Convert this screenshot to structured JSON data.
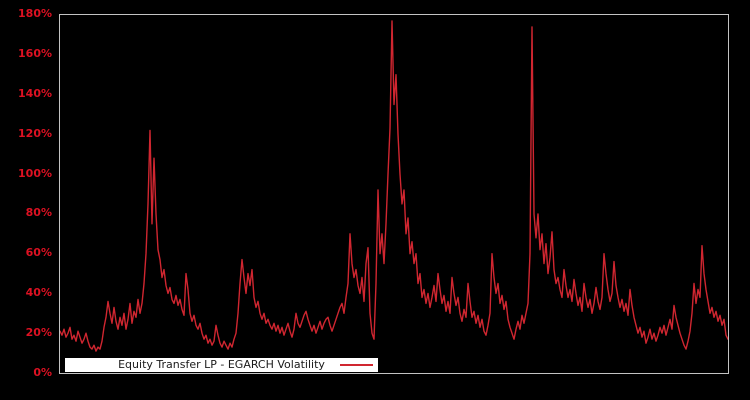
{
  "figure": {
    "background_color": "#000000",
    "plot_border_color": "#c3c3c3",
    "axis_label_color": "#dd1122"
  },
  "legend": {
    "label": "Equity Transfer LP - EGARCH Volatility",
    "background": "#ffffff",
    "text_color": "#1a1a1a"
  },
  "chart_data": {
    "type": "line",
    "title": "",
    "xlabel": "",
    "ylabel": "",
    "x_axis_labels": "none",
    "grid": false,
    "legend_position": "bottom-left-inside",
    "ylim": [
      0,
      180
    ],
    "yticks": [
      {
        "value": 0,
        "label": "0%"
      },
      {
        "value": 20,
        "label": "20%"
      },
      {
        "value": 40,
        "label": "40%"
      },
      {
        "value": 60,
        "label": "60%"
      },
      {
        "value": 80,
        "label": "80%"
      },
      {
        "value": 100,
        "label": "100%"
      },
      {
        "value": 120,
        "label": "120%"
      },
      {
        "value": 140,
        "label": "140%"
      },
      {
        "value": 160,
        "label": "160%"
      },
      {
        "value": 180,
        "label": "180%"
      }
    ],
    "series": [
      {
        "name": "Equity Transfer LP - EGARCH Volatility",
        "color": "#d02630",
        "unit": "percent",
        "values_pct": [
          21,
          19,
          22,
          18,
          20,
          23,
          17,
          19,
          16,
          21,
          18,
          15,
          17,
          20,
          16,
          13,
          12,
          14,
          11,
          13,
          12,
          16,
          23,
          28,
          36,
          30,
          25,
          33,
          26,
          22,
          28,
          24,
          30,
          22,
          27,
          35,
          25,
          31,
          28,
          37,
          30,
          35,
          45,
          60,
          85,
          122,
          75,
          108,
          80,
          62,
          57,
          48,
          52,
          44,
          40,
          43,
          37,
          35,
          39,
          34,
          37,
          32,
          29,
          50,
          42,
          30,
          26,
          29,
          24,
          22,
          25,
          20,
          17,
          19,
          15,
          17,
          14,
          16,
          24,
          19,
          15,
          13,
          16,
          14,
          12,
          15,
          13,
          17,
          20,
          30,
          45,
          57,
          48,
          40,
          50,
          44,
          52,
          38,
          33,
          36,
          30,
          27,
          30,
          25,
          27,
          24,
          22,
          25,
          21,
          24,
          20,
          23,
          19,
          22,
          25,
          21,
          18,
          22,
          30,
          25,
          23,
          26,
          29,
          31,
          27,
          24,
          21,
          24,
          20,
          23,
          26,
          22,
          25,
          27,
          28,
          24,
          21,
          24,
          27,
          30,
          33,
          35,
          30,
          38,
          45,
          70,
          55,
          48,
          52,
          44,
          40,
          48,
          36,
          55,
          63,
          30,
          20,
          17,
          45,
          92,
          60,
          70,
          55,
          75,
          100,
          123,
          177,
          135,
          150,
          120,
          100,
          85,
          92,
          70,
          78,
          60,
          66,
          55,
          60,
          45,
          50,
          38,
          42,
          35,
          40,
          33,
          38,
          44,
          36,
          50,
          42,
          35,
          39,
          31,
          36,
          30,
          48,
          40,
          34,
          38,
          30,
          26,
          32,
          28,
          45,
          36,
          28,
          31,
          25,
          29,
          23,
          27,
          21,
          19,
          24,
          30,
          60,
          48,
          40,
          45,
          35,
          39,
          32,
          36,
          27,
          23,
          20,
          17,
          22,
          26,
          22,
          29,
          25,
          30,
          35,
          60,
          174,
          80,
          68,
          80,
          62,
          70,
          55,
          65,
          50,
          58,
          71,
          52,
          45,
          48,
          42,
          38,
          52,
          44,
          38,
          42,
          36,
          47,
          40,
          34,
          38,
          31,
          45,
          38,
          33,
          37,
          30,
          35,
          43,
          36,
          32,
          38,
          60,
          50,
          42,
          36,
          40,
          56,
          44,
          38,
          33,
          37,
          31,
          35,
          29,
          42,
          34,
          28,
          24,
          20,
          23,
          18,
          21,
          15,
          18,
          22,
          17,
          20,
          16,
          19,
          23,
          20,
          24,
          19,
          23,
          27,
          22,
          34,
          28,
          24,
          20,
          17,
          14,
          12,
          16,
          21,
          30,
          45,
          35,
          42,
          38,
          64,
          50,
          42,
          36,
          30,
          33,
          28,
          31,
          26,
          29,
          24,
          27,
          19,
          17
        ]
      }
    ]
  }
}
